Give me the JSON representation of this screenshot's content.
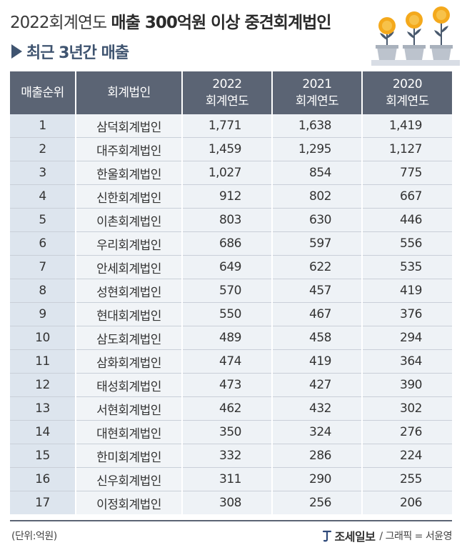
{
  "header": {
    "title_part1": "2022회계연도",
    "title_part2": "매출 300억원 이상 중견회계법인",
    "subtitle": "최근 3년간 매출"
  },
  "table": {
    "columns": [
      {
        "line1": "매출순위",
        "line2": ""
      },
      {
        "line1": "회계법인",
        "line2": ""
      },
      {
        "line1": "2022",
        "line2": "회계연도"
      },
      {
        "line1": "2021",
        "line2": "회계연도"
      },
      {
        "line1": "2020",
        "line2": "회계연도"
      }
    ],
    "rows": [
      {
        "rank": "1",
        "firm": "삼덕회계법인",
        "y2022": "1,771",
        "y2021": "1,638",
        "y2020": "1,419"
      },
      {
        "rank": "2",
        "firm": "대주회계법인",
        "y2022": "1,459",
        "y2021": "1,295",
        "y2020": "1,127"
      },
      {
        "rank": "3",
        "firm": "한울회계법인",
        "y2022": "1,027",
        "y2021": "854",
        "y2020": "775"
      },
      {
        "rank": "4",
        "firm": "신한회계법인",
        "y2022": "912",
        "y2021": "802",
        "y2020": "667"
      },
      {
        "rank": "5",
        "firm": "이촌회계법인",
        "y2022": "803",
        "y2021": "630",
        "y2020": "446"
      },
      {
        "rank": "6",
        "firm": "우리회계법인",
        "y2022": "686",
        "y2021": "597",
        "y2020": "556"
      },
      {
        "rank": "7",
        "firm": "안세회계법인",
        "y2022": "649",
        "y2021": "622",
        "y2020": "535"
      },
      {
        "rank": "8",
        "firm": "성현회계법인",
        "y2022": "570",
        "y2021": "457",
        "y2020": "419"
      },
      {
        "rank": "9",
        "firm": "현대회계법인",
        "y2022": "550",
        "y2021": "467",
        "y2020": "376"
      },
      {
        "rank": "10",
        "firm": "삼도회계법인",
        "y2022": "489",
        "y2021": "458",
        "y2020": "294"
      },
      {
        "rank": "11",
        "firm": "삼화회계법인",
        "y2022": "474",
        "y2021": "419",
        "y2020": "364"
      },
      {
        "rank": "12",
        "firm": "태성회계법인",
        "y2022": "473",
        "y2021": "427",
        "y2020": "390"
      },
      {
        "rank": "13",
        "firm": "서현회계법인",
        "y2022": "462",
        "y2021": "432",
        "y2020": "302"
      },
      {
        "rank": "14",
        "firm": "대현회계법인",
        "y2022": "350",
        "y2021": "324",
        "y2020": "276"
      },
      {
        "rank": "15",
        "firm": "한미회계법인",
        "y2022": "332",
        "y2021": "286",
        "y2020": "224"
      },
      {
        "rank": "16",
        "firm": "신우회계법인",
        "y2022": "311",
        "y2021": "290",
        "y2020": "255"
      },
      {
        "rank": "17",
        "firm": "이정회계법인",
        "y2022": "308",
        "y2021": "256",
        "y2020": "206"
      }
    ]
  },
  "footer": {
    "unit": "(단위:억원)",
    "logo": "조세일보",
    "credit": "/ 그래픽 = 서윤영"
  },
  "colors": {
    "header_bg": "#5b6474",
    "rank_bg": "#dde5ee",
    "cell_bg": "#eef2f6",
    "title_accent": "#3f5470",
    "flower": "#f4a91c"
  },
  "icons": [
    "triangle-right-icon",
    "flower-pots-illustration",
    "logo-mark-icon"
  ]
}
